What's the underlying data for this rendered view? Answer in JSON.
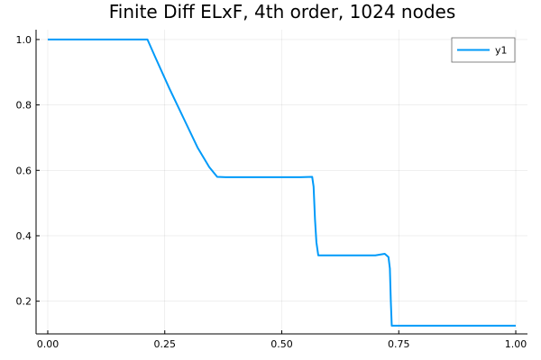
{
  "chart_data": {
    "type": "line",
    "title": "Finite Diff ELxF, 4th order, 1024 nodes",
    "xlabel": "",
    "ylabel": "",
    "xlim": [
      -0.025,
      1.025
    ],
    "ylim": [
      0.1,
      1.03
    ],
    "xticks": [
      0.0,
      0.25,
      0.5,
      0.75,
      1.0
    ],
    "xtick_labels": [
      "0.00",
      "0.25",
      "0.50",
      "0.75",
      "1.00"
    ],
    "yticks": [
      0.2,
      0.4,
      0.6,
      0.8,
      1.0
    ],
    "ytick_labels": [
      "0.2",
      "0.4",
      "0.6",
      "0.8",
      "1.0"
    ],
    "grid": true,
    "legend_position": "top-right",
    "series": [
      {
        "name": "y1",
        "color": "#009af9",
        "x": [
          0.0,
          0.05,
          0.1,
          0.15,
          0.18,
          0.2,
          0.213,
          0.23,
          0.26,
          0.29,
          0.32,
          0.345,
          0.362,
          0.38,
          0.42,
          0.46,
          0.5,
          0.54,
          0.565,
          0.568,
          0.571,
          0.574,
          0.578,
          0.6,
          0.65,
          0.7,
          0.72,
          0.728,
          0.731,
          0.733,
          0.735,
          0.76,
          0.8,
          0.9,
          1.0
        ],
        "y": [
          1.0,
          1.0,
          1.0,
          1.0,
          1.0,
          1.0,
          1.0,
          0.945,
          0.85,
          0.76,
          0.67,
          0.61,
          0.58,
          0.579,
          0.579,
          0.579,
          0.579,
          0.579,
          0.58,
          0.55,
          0.45,
          0.38,
          0.34,
          0.34,
          0.34,
          0.34,
          0.345,
          0.335,
          0.3,
          0.2,
          0.125,
          0.125,
          0.125,
          0.125,
          0.125
        ]
      }
    ]
  }
}
